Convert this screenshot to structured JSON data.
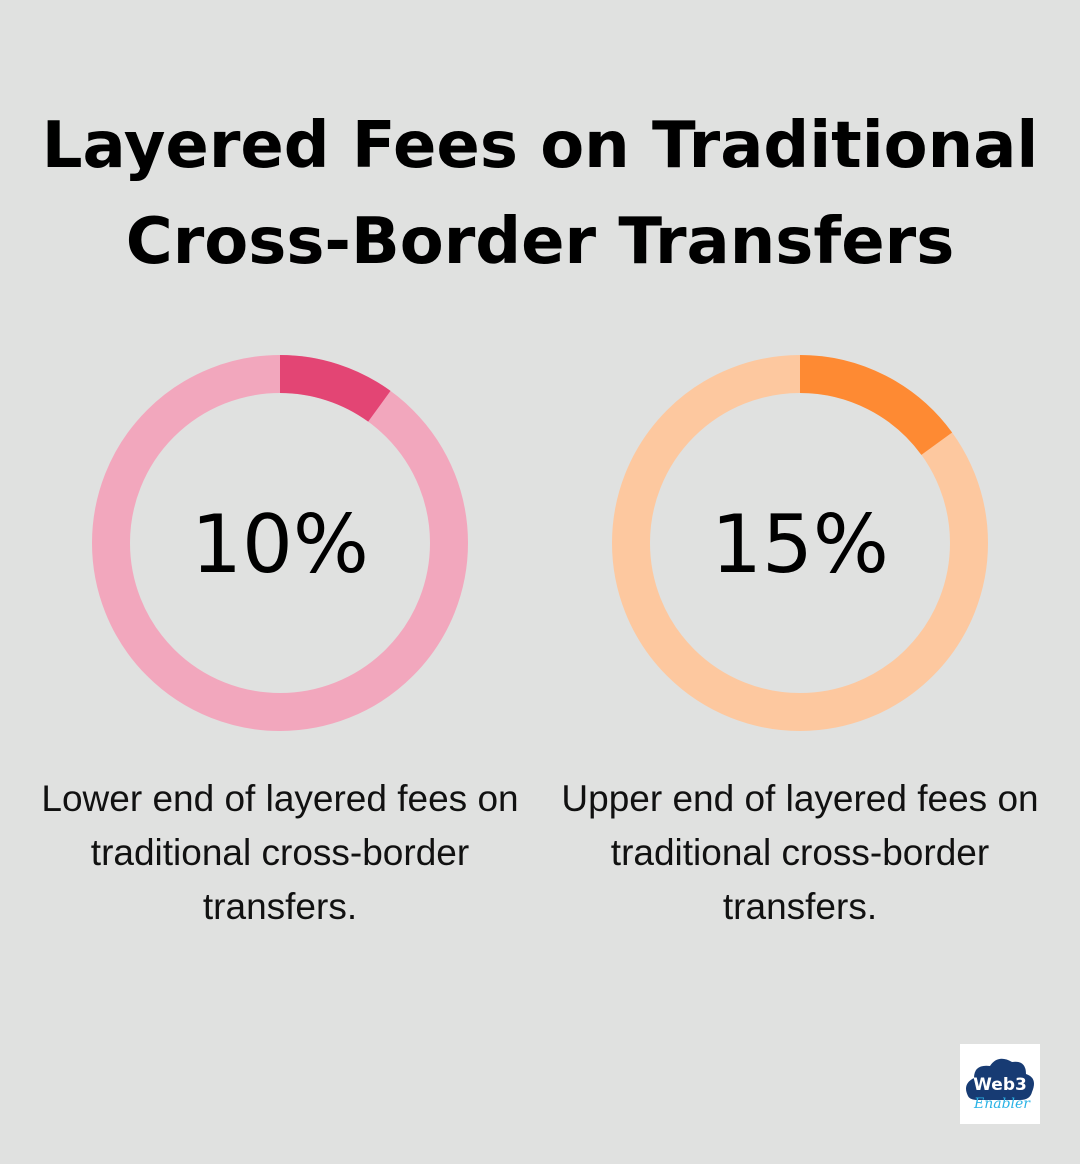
{
  "title": "Layered Fees on Traditional Cross-Border Transfers",
  "chart_data": [
    {
      "type": "pie",
      "variant": "donut",
      "value": 10,
      "label": "10%",
      "description": "Lower end of layered fees on traditional cross-border transfers.",
      "colors": {
        "fill": "#e34574",
        "track": "#f2a7bd"
      }
    },
    {
      "type": "pie",
      "variant": "donut",
      "value": 15,
      "label": "15%",
      "description": "Upper end of layered fees on traditional cross-border transfers.",
      "colors": {
        "fill": "#fe8a33",
        "track": "#fdc89f"
      }
    }
  ],
  "logo": {
    "text": "Web3 Enabler",
    "colors": {
      "cloud": "#173b73",
      "script": "#2ab3e6"
    }
  }
}
